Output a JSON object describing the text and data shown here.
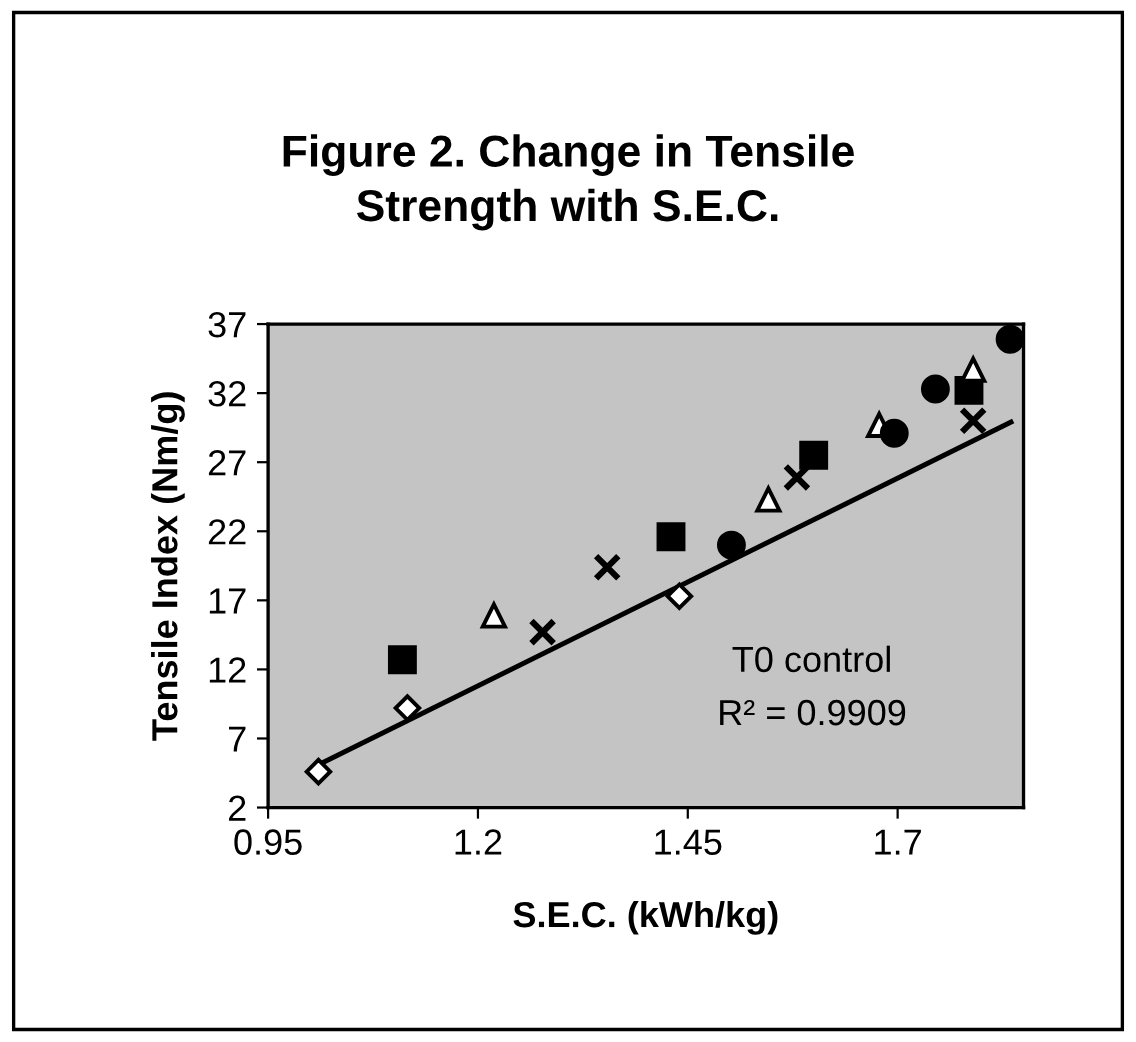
{
  "chart_data": {
    "type": "scatter",
    "title": "Figure 2. Change in Tensile\nStrength with S.E.C.",
    "xlabel": "S.E.C. (kWh/kg)",
    "ylabel": "Tensile Index (Nm/g)",
    "annotations": [
      "T0 control",
      "R² = 0.9909"
    ],
    "xlim": [
      0.95,
      1.85
    ],
    "xticks": [
      0.95,
      1.2,
      1.45,
      1.7
    ],
    "ylim": [
      2,
      37
    ],
    "yticks": [
      2,
      7,
      12,
      17,
      22,
      27,
      32,
      37
    ],
    "grid": false,
    "legend": false,
    "series": [
      {
        "marker": "diamond",
        "color": "#000000",
        "x": [
          1.01,
          1.116,
          1.44
        ],
        "values": [
          4.6,
          9.2,
          17.3
        ]
      },
      {
        "marker": "square",
        "color": "#000000",
        "x": [
          1.11,
          1.43,
          1.6,
          1.785
        ],
        "values": [
          12.7,
          21.6,
          27.5,
          32.2
        ]
      },
      {
        "marker": "triangle",
        "color": "#000000",
        "x": [
          1.219,
          1.546,
          1.678,
          1.79
        ],
        "values": [
          15.9,
          24.3,
          29.7,
          33.7
        ]
      },
      {
        "marker": "cross",
        "color": "#000000",
        "x": [
          1.277,
          1.354,
          1.58,
          1.79
        ],
        "values": [
          14.7,
          19.4,
          25.9,
          30.0
        ]
      },
      {
        "marker": "circle",
        "color": "#000000",
        "x": [
          1.502,
          1.696,
          1.745,
          1.834
        ],
        "values": [
          21.0,
          29.1,
          32.3,
          35.9
        ]
      },
      {
        "type": "line",
        "marker": "none",
        "color": "#000000",
        "x": [
          1.01,
          1.835
        ],
        "values": [
          5.1,
          29.9
        ]
      }
    ]
  }
}
